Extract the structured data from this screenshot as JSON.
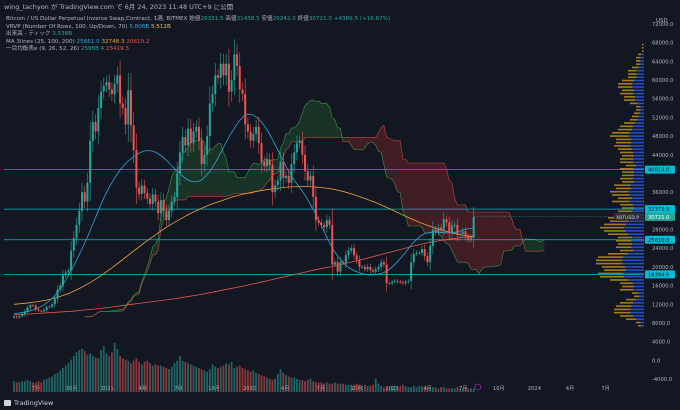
{
  "header": {
    "title": "wing_tachyon が TradingView.com で 6月 24, 2023 11:48 UTC+9 に公開"
  },
  "info": {
    "symbol_line": "Bitcoin / US Dollar Perpetual Inverse Swap Contract, 1週, BITMEX",
    "ohlc": {
      "open_label": "始値",
      "open": "26331.5",
      "high_label": "高値",
      "high": "31438.5",
      "low_label": "安値",
      "low": "26242.0",
      "close_label": "終値",
      "close": "30721.0",
      "change": "+4389.5 (+16.67%)"
    },
    "vrvp": {
      "label": "VRVP (Number Of Rows, 100, Up/Down, 70)",
      "v1": "5.806B",
      "v2": "5.512B"
    },
    "volume": {
      "label": "出来高 - ティック",
      "value": "3.538B"
    },
    "ma": {
      "label": "MA 3lines (25, 100, 200)",
      "v1": "25661.0",
      "v2": "32748.3",
      "v3": "20610.2"
    },
    "ichimoku": {
      "label": "一目均衡表e (9, 26, 52, 26)",
      "v1": "25988.4",
      "v2": "23419.3"
    }
  },
  "chart_data": {
    "type": "candlestick",
    "price_axis": {
      "unit": "USD",
      "ylim": [
        -4000,
        72000
      ],
      "ticks": [
        "72000.0",
        "68000.0",
        "64000.0",
        "60000.0",
        "56000.0",
        "52000.0",
        "48000.0",
        "44000.0",
        "36000.0",
        "32000.0",
        "28000.0",
        "24000.0",
        "20000.0",
        "16000.0",
        "12000.0",
        "8000.0",
        "4000.0",
        "0.0",
        "-4000.0"
      ]
    },
    "time_axis": {
      "ticks": [
        "7月",
        "10月",
        "2021",
        "4月",
        "7月",
        "10月",
        "2022",
        "4月",
        "7月",
        "10月",
        "2023",
        "4月",
        "7月",
        "10月",
        "2024",
        "4月",
        "7月"
      ]
    },
    "horizontal_levels": [
      {
        "value": 40814.0,
        "label": "40814.0",
        "color": "#00bcd4"
      },
      {
        "value": 32372.5,
        "label": "32372.5",
        "color": "#00bcd4"
      },
      {
        "value": 25810.0,
        "label": "25810.0",
        "color": "#00bcd4"
      },
      {
        "value": 18394.5,
        "label": "18394.5",
        "color": "#00bcd4"
      }
    ],
    "current_price": {
      "value": 30721.0,
      "label": "30721.0"
    },
    "symbol_tag": "XBTUSD.P",
    "closes": [
      9400,
      9200,
      9500,
      9800,
      10500,
      11300,
      11800,
      11700,
      10900,
      10600,
      10500,
      10800,
      11400,
      11500,
      12000,
      13200,
      15100,
      16000,
      18200,
      18800,
      19200,
      23500,
      26200,
      29000,
      32000,
      36000,
      34000,
      38000,
      47000,
      51000,
      49000,
      54000,
      57500,
      58800,
      59500,
      58000,
      57000,
      59200,
      61000,
      55000,
      54000,
      50500,
      57800,
      50300,
      45000,
      37000,
      35600,
      37400,
      35800,
      34600,
      33500,
      35500,
      34000,
      31500,
      34300,
      32000,
      30000,
      32000,
      34000,
      35000,
      40000,
      44500,
      47800,
      46000,
      49600,
      46500,
      49000,
      50000,
      47000,
      42000,
      44000,
      48000,
      55000,
      57000,
      61000,
      60500,
      63500,
      61000,
      63500,
      57500,
      60000,
      65500,
      63000,
      58000,
      57000,
      50500,
      49000,
      47000,
      48500,
      50000,
      46500,
      42500,
      41600,
      43000,
      41800,
      36000,
      37500,
      38500,
      42500,
      39000,
      39500,
      38000,
      42000,
      44500,
      46500,
      47000,
      44000,
      40500,
      38500,
      39500,
      35000,
      30000,
      29500,
      29000,
      28500,
      30000,
      29000,
      20500,
      21000,
      19000,
      21000,
      20800,
      22500,
      23500,
      24000,
      22500,
      21500,
      20000,
      20000,
      19500,
      20000,
      19300,
      19000,
      19500,
      20000,
      21000,
      20500,
      16500,
      16500,
      16800,
      17000,
      16800,
      16700,
      16500,
      16800,
      17000,
      21000,
      22800,
      23000,
      23000,
      23800,
      22300,
      21000,
      24500,
      28000,
      27500,
      28400,
      27900,
      30200,
      29500,
      27300,
      28900,
      29000,
      26800,
      27100,
      27600,
      26500,
      25900,
      26300,
      30721
    ],
    "ma25": [
      10000,
      10100,
      10300,
      10500,
      10800,
      11200,
      11700,
      12400,
      13300,
      14500,
      15900,
      17500,
      19300,
      21300,
      23400,
      25600,
      28000,
      30500,
      33000,
      35300,
      37300,
      39000,
      40500,
      41800,
      42800,
      43600,
      44300,
      44800,
      44900,
      44800,
      44300,
      43600,
      42700,
      41600,
      40600,
      39600,
      38800,
      38300,
      38200,
      38500,
      39400,
      40600,
      42200,
      44100,
      46100,
      48000,
      49700,
      51200,
      52300,
      52700,
      52500,
      51800,
      50600,
      49100,
      47200,
      45200,
      43200,
      41200,
      39400,
      37900,
      36500,
      35000,
      33200,
      31300,
      29200,
      27100,
      25000,
      23200,
      21800,
      20600,
      19800,
      19200,
      18800,
      18500,
      18300,
      18300,
      18400,
      18700,
      19200,
      20000,
      21000,
      22200,
      23400,
      24700,
      25800,
      26700,
      27200,
      27400,
      27500,
      27400,
      27300,
      27300,
      27400,
      27600,
      28000,
      28200,
      28300
    ],
    "ma100": [
      12000,
      12200,
      12500,
      12900,
      13500,
      14300,
      15400,
      16700,
      18200,
      19900,
      21700,
      23500,
      25300,
      27000,
      28600,
      30000,
      31300,
      32400,
      33400,
      34200,
      35000,
      35600,
      36100,
      36500,
      36800,
      37100,
      37200,
      37200,
      37000,
      36700,
      36200,
      35500,
      34700,
      33800,
      32800,
      31700,
      30600,
      29600,
      28700,
      27900,
      27300,
      26800,
      26400
    ],
    "ma200": [
      9800,
      9900,
      10100,
      10300,
      10500,
      10800,
      11100,
      11500,
      11900,
      12300,
      12700,
      13100,
      13600,
      14100,
      14700,
      15300,
      15900,
      16600,
      17300,
      18000,
      18700,
      19400,
      20000,
      20700,
      21400,
      22200,
      23000,
      23800,
      24600,
      25300,
      25800,
      26200,
      26600
    ],
    "volume": [
      0.9,
      0.8,
      0.8,
      0.9,
      0.9,
      1.0,
      0.9,
      0.8,
      0.8,
      0.9,
      0.8,
      1.0,
      1.1,
      1.2,
      1.3,
      1.5,
      1.6,
      1.8,
      2.0,
      2.2,
      2.4,
      2.7,
      3.0,
      3.3,
      3.5,
      3.6,
      3.4,
      3.1,
      3.2,
      3.0,
      2.9,
      2.8,
      3.5,
      3.8,
      3.2,
      3.0,
      3.3,
      4.1,
      3.6,
      3.0,
      2.8,
      2.7,
      2.6,
      2.4,
      2.6,
      2.8,
      2.5,
      2.3,
      2.5,
      2.6,
      2.4,
      2.2,
      2.3,
      2.2,
      2.2,
      2.1,
      2.0,
      1.9,
      2.1,
      2.4,
      2.6,
      3.0,
      2.6,
      2.5,
      2.4,
      2.3,
      2.2,
      2.1,
      2.0,
      1.9,
      1.8,
      1.7,
      1.9,
      2.3,
      2.1,
      2.0,
      2.1,
      2.2,
      2.4,
      2.3,
      2.5,
      2.0,
      2.1,
      2.2,
      2.0,
      1.9,
      1.8,
      1.7,
      1.8,
      1.6,
      1.5,
      1.4,
      1.3,
      1.2,
      1.1,
      1.0,
      1.1,
      1.5,
      1.9,
      1.6,
      1.4,
      1.3,
      1.2,
      1.2,
      1.1,
      1.0,
      1.0,
      0.9,
      1.0,
      1.1,
      0.9,
      0.8,
      0.8,
      0.8,
      0.7,
      0.8,
      0.7,
      0.7,
      0.8,
      0.7,
      0.7,
      0.7,
      0.6,
      0.6,
      0.6,
      0.6,
      0.7,
      0.6,
      0.5,
      0.6,
      0.5,
      0.5,
      0.6,
      1.1,
      0.7,
      0.5,
      0.4,
      0.4,
      0.4,
      0.5,
      0.5,
      0.4,
      0.5,
      0.6,
      0.5,
      0.4,
      0.4,
      0.5,
      0.4,
      0.5,
      0.5,
      0.4,
      0.4,
      0.4,
      0.4,
      0.4,
      0.3,
      0.4,
      0.4,
      0.3,
      0.3,
      0.3,
      0.3,
      0.4,
      0.3,
      0.3,
      0.4,
      0.3,
      0.3,
      0.3,
      0.4,
      0.3,
      0.3
    ]
  },
  "footer": {
    "brand": "TradingView"
  },
  "colors": {
    "bg": "#131722",
    "up": "#26a69a",
    "down": "#ef5350",
    "level": "#00bcd4",
    "ma25": "#2ba8d8",
    "ma100": "#f0a33a",
    "ma200": "#ef5350",
    "kumo_bear": "#6b2226",
    "kumo_bull": "#1f4d2a"
  }
}
